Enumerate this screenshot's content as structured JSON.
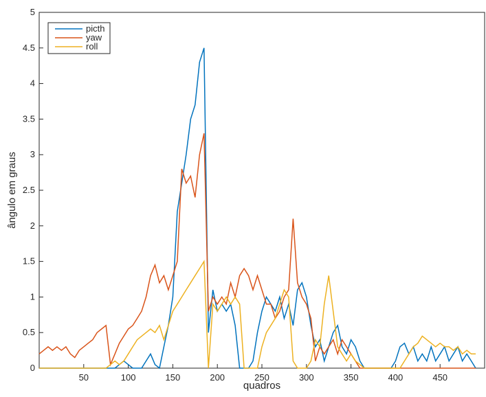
{
  "chart_data": {
    "type": "line",
    "xlabel": "quadros",
    "ylabel": "ângulo em graus",
    "x": [
      0,
      5,
      10,
      15,
      20,
      25,
      30,
      35,
      40,
      45,
      50,
      55,
      60,
      65,
      70,
      75,
      80,
      85,
      90,
      95,
      100,
      105,
      110,
      115,
      120,
      125,
      130,
      135,
      140,
      145,
      150,
      155,
      160,
      165,
      170,
      175,
      180,
      185,
      190,
      195,
      200,
      205,
      210,
      215,
      220,
      225,
      230,
      235,
      240,
      245,
      250,
      255,
      260,
      265,
      270,
      275,
      280,
      285,
      290,
      295,
      300,
      305,
      310,
      315,
      320,
      325,
      330,
      335,
      340,
      345,
      350,
      355,
      360,
      365,
      370,
      375,
      380,
      385,
      390,
      395,
      400,
      405,
      410,
      415,
      420,
      425,
      430,
      435,
      440,
      445,
      450,
      455,
      460,
      465,
      470,
      475,
      480,
      485,
      490
    ],
    "series": [
      {
        "name": "picth",
        "color": "#0072bd",
        "values": [
          0,
          0,
          0,
          0,
          0,
          0,
          0,
          0,
          0,
          0,
          0,
          0,
          0,
          0,
          0,
          0,
          0,
          0,
          0.05,
          0.1,
          0.05,
          0,
          0,
          0,
          0.1,
          0.2,
          0.05,
          0,
          0.3,
          0.6,
          1.0,
          2.2,
          2.6,
          3.0,
          3.5,
          3.7,
          4.3,
          4.5,
          0.5,
          1.1,
          0.8,
          0.9,
          0.8,
          0.9,
          0.6,
          0,
          0,
          0,
          0.1,
          0.5,
          0.8,
          1.0,
          0.9,
          0.8,
          1.0,
          0.7,
          0.9,
          0.6,
          1.1,
          1.2,
          1.0,
          0.6,
          0.3,
          0.4,
          0.1,
          0.3,
          0.5,
          0.6,
          0.3,
          0.2,
          0.4,
          0.3,
          0.1,
          0,
          0,
          0,
          0,
          0,
          0,
          0,
          0.1,
          0.3,
          0.35,
          0.2,
          0.3,
          0.1,
          0.2,
          0.1,
          0.3,
          0.1,
          0.2,
          0.3,
          0.1,
          0.2,
          0.3,
          0.1,
          0.2,
          0.1,
          0
        ]
      },
      {
        "name": "yaw",
        "color": "#d95319",
        "values": [
          0.2,
          0.25,
          0.3,
          0.25,
          0.3,
          0.25,
          0.3,
          0.2,
          0.15,
          0.25,
          0.3,
          0.35,
          0.4,
          0.5,
          0.55,
          0.6,
          0.05,
          0.2,
          0.35,
          0.45,
          0.55,
          0.6,
          0.7,
          0.8,
          1.0,
          1.3,
          1.45,
          1.2,
          1.3,
          1.1,
          1.3,
          1.5,
          2.8,
          2.6,
          2.7,
          2.4,
          3.0,
          3.3,
          0.8,
          1.0,
          0.9,
          1.0,
          0.9,
          1.2,
          1.0,
          1.3,
          1.4,
          1.3,
          1.1,
          1.3,
          1.1,
          0.9,
          0.9,
          0.7,
          0.8,
          1.0,
          1.1,
          2.1,
          1.2,
          1.0,
          0.9,
          0.7,
          0.1,
          0.3,
          0.2,
          0.3,
          0.4,
          0.2,
          0.4,
          0.3,
          0.2,
          0.1,
          0,
          0,
          0,
          0,
          0,
          0,
          0,
          0,
          0,
          0,
          0,
          0,
          0,
          0,
          0,
          0,
          0,
          0,
          0,
          0,
          0,
          0,
          0,
          0,
          0,
          0,
          0
        ]
      },
      {
        "name": "roll",
        "color": "#edb120",
        "values": [
          0,
          0,
          0,
          0,
          0,
          0,
          0,
          0,
          0,
          0,
          0,
          0,
          0,
          0,
          0,
          0,
          0.05,
          0.1,
          0.05,
          0.1,
          0.2,
          0.3,
          0.4,
          0.45,
          0.5,
          0.55,
          0.5,
          0.6,
          0.4,
          0.6,
          0.8,
          0.9,
          1.0,
          1.1,
          1.2,
          1.3,
          1.4,
          1.5,
          0,
          0.9,
          0.8,
          0.9,
          1.0,
          0.9,
          1.0,
          0.9,
          0,
          0,
          0,
          0,
          0.3,
          0.5,
          0.6,
          0.7,
          0.9,
          1.1,
          1.0,
          0.1,
          0,
          0,
          0,
          0.1,
          0.4,
          0.3,
          0.9,
          1.3,
          0.8,
          0.3,
          0.2,
          0.1,
          0.2,
          0.1,
          0.05,
          0,
          0,
          0,
          0,
          0,
          0,
          0,
          0,
          0,
          0.1,
          0.2,
          0.3,
          0.35,
          0.45,
          0.4,
          0.35,
          0.3,
          0.35,
          0.3,
          0.3,
          0.25,
          0.3,
          0.2,
          0.25,
          0.2,
          0.2
        ]
      }
    ],
    "xlim": [
      0,
      500
    ],
    "ylim": [
      0,
      5
    ],
    "xticks": [
      50,
      100,
      150,
      200,
      250,
      300,
      350,
      400,
      450
    ],
    "yticks": [
      0,
      0.5,
      1,
      1.5,
      2,
      2.5,
      3,
      3.5,
      4,
      4.5,
      5
    ],
    "legend": "upper left"
  }
}
